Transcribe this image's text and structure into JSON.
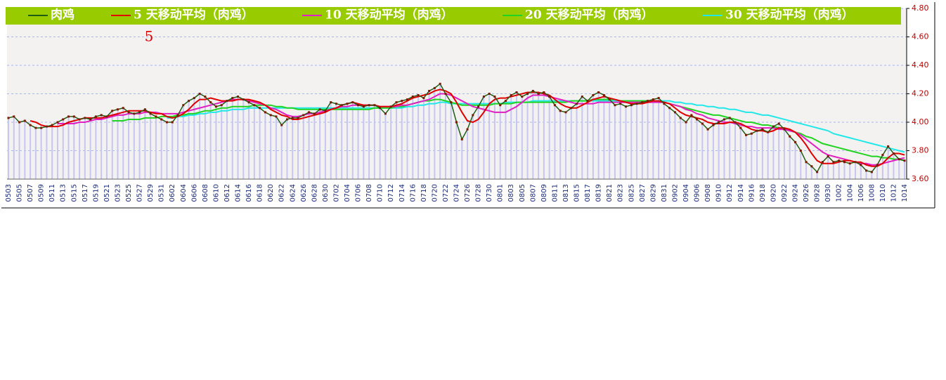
{
  "chart_data": {
    "type": "line",
    "annotation": "5",
    "categories": [
      "0503",
      null,
      "0505",
      null,
      "0507",
      null,
      "0509",
      null,
      "0511",
      null,
      "0513",
      null,
      "0515",
      null,
      "0517",
      null,
      "0519",
      null,
      "0521",
      null,
      "0523",
      null,
      "0525",
      null,
      "0527",
      null,
      "0529",
      null,
      "0531",
      null,
      "0602",
      null,
      "0604",
      null,
      "0606",
      null,
      "0608",
      null,
      "0610",
      null,
      "0612",
      null,
      "0614",
      null,
      "0616",
      null,
      "0618",
      null,
      "0620",
      null,
      "0622",
      null,
      "0624",
      null,
      "0626",
      null,
      "0628",
      null,
      "0630",
      null,
      "0702",
      null,
      "0704",
      null,
      "0706",
      null,
      "0708",
      null,
      "0710",
      null,
      "0712",
      null,
      "0714",
      null,
      "0716",
      null,
      "0718",
      null,
      "0720",
      null,
      "0722",
      null,
      "0724",
      null,
      "0726",
      null,
      "0728",
      null,
      "0730",
      null,
      "0801",
      null,
      "0803",
      null,
      "0805",
      null,
      "0807",
      null,
      "0809",
      null,
      "0811",
      null,
      "0813",
      null,
      "0815",
      null,
      "0817",
      null,
      "0819",
      null,
      "0821",
      null,
      "0823",
      null,
      "0825",
      null,
      "0827",
      null,
      "0829",
      null,
      "0831",
      null,
      "0902",
      null,
      "0904",
      null,
      "0906",
      null,
      "0908",
      null,
      "0910",
      null,
      "0912",
      null,
      "0914",
      null,
      "0916",
      null,
      "0918",
      null,
      "0920",
      null,
      "0922",
      null,
      "0924",
      null,
      "0926",
      null,
      "0928",
      null,
      "0930",
      null,
      "1002",
      null,
      "1004",
      null,
      "1006",
      null,
      "1008",
      null,
      "1010",
      null,
      "1012",
      null,
      "1014"
    ],
    "series": [
      {
        "name": "肉鸡",
        "color": "#1f5e14",
        "values": [
          4.03,
          4.04,
          4.0,
          4.01,
          3.98,
          3.96,
          3.96,
          3.97,
          3.98,
          4.0,
          4.02,
          4.04,
          4.04,
          4.02,
          4.03,
          4.02,
          4.04,
          4.05,
          4.04,
          4.08,
          4.09,
          4.1,
          4.07,
          4.06,
          4.07,
          4.09,
          4.06,
          4.04,
          4.02,
          4.0,
          4.0,
          4.05,
          4.12,
          4.15,
          4.17,
          4.2,
          4.18,
          4.14,
          4.11,
          4.12,
          4.15,
          4.17,
          4.18,
          4.16,
          4.14,
          4.12,
          4.1,
          4.07,
          4.05,
          4.04,
          3.98,
          4.02,
          4.03,
          4.03,
          4.05,
          4.07,
          4.06,
          4.09,
          4.08,
          4.14,
          4.13,
          4.12,
          4.13,
          4.14,
          4.12,
          4.11,
          4.12,
          4.12,
          4.1,
          4.06,
          4.11,
          4.14,
          4.15,
          4.16,
          4.18,
          4.19,
          4.17,
          4.22,
          4.24,
          4.27,
          4.2,
          4.14,
          4.0,
          3.88,
          3.95,
          4.05,
          4.11,
          4.18,
          4.2,
          4.18,
          4.12,
          4.15,
          4.19,
          4.21,
          4.18,
          4.2,
          4.22,
          4.2,
          4.21,
          4.18,
          4.12,
          4.08,
          4.07,
          4.1,
          4.13,
          4.18,
          4.15,
          4.19,
          4.21,
          4.19,
          4.16,
          4.12,
          4.13,
          4.11,
          4.12,
          4.13,
          4.14,
          4.15,
          4.16,
          4.17,
          4.13,
          4.1,
          4.07,
          4.03,
          4.0,
          4.05,
          4.02,
          3.99,
          3.95,
          3.98,
          4.0,
          4.02,
          4.03,
          4.0,
          3.96,
          3.91,
          3.92,
          3.94,
          3.95,
          3.93,
          3.97,
          3.99,
          3.95,
          3.9,
          3.86,
          3.8,
          3.72,
          3.69,
          3.65,
          3.72,
          3.76,
          3.72,
          3.73,
          3.72,
          3.71,
          3.72,
          3.7,
          3.66,
          3.65,
          3.7,
          3.77,
          3.83,
          3.78,
          3.74,
          3.73
        ]
      },
      {
        "name": "5 天移动平均（肉鸡）",
        "color": "#e00000",
        "values": [
          null,
          null,
          null,
          null,
          4.01,
          4.0,
          3.98,
          3.97,
          3.97,
          3.97,
          3.98,
          4.0,
          4.01,
          4.02,
          4.03,
          4.03,
          4.03,
          4.03,
          4.04,
          4.05,
          4.06,
          4.07,
          4.08,
          4.08,
          4.08,
          4.08,
          4.07,
          4.06,
          4.06,
          4.04,
          4.03,
          4.04,
          4.06,
          4.09,
          4.13,
          4.16,
          4.16,
          4.17,
          4.16,
          4.15,
          4.15,
          4.15,
          4.16,
          4.16,
          4.16,
          4.15,
          4.14,
          4.12,
          4.09,
          4.07,
          4.05,
          4.04,
          4.02,
          4.02,
          4.03,
          4.04,
          4.05,
          4.06,
          4.07,
          4.09,
          4.1,
          4.12,
          4.13,
          4.14,
          4.13,
          4.12,
          4.12,
          4.12,
          4.11,
          4.11,
          4.11,
          4.12,
          4.13,
          4.15,
          4.17,
          4.18,
          4.19,
          4.2,
          4.22,
          4.23,
          4.22,
          4.2,
          4.14,
          4.07,
          4.01,
          4.0,
          4.02,
          4.07,
          4.13,
          4.16,
          4.17,
          4.17,
          4.18,
          4.19,
          4.2,
          4.21,
          4.21,
          4.21,
          4.2,
          4.19,
          4.16,
          4.13,
          4.11,
          4.1,
          4.1,
          4.12,
          4.14,
          4.16,
          4.17,
          4.18,
          4.17,
          4.16,
          4.15,
          4.14,
          4.13,
          4.13,
          4.13,
          4.14,
          4.15,
          4.15,
          4.14,
          4.13,
          4.1,
          4.07,
          4.05,
          4.04,
          4.03,
          4.02,
          4.0,
          3.99,
          3.99,
          3.99,
          4.0,
          4.0,
          3.99,
          3.97,
          3.95,
          3.94,
          3.94,
          3.93,
          3.94,
          3.96,
          3.96,
          3.95,
          3.93,
          3.89,
          3.84,
          3.78,
          3.73,
          3.71,
          3.71,
          3.71,
          3.72,
          3.73,
          3.73,
          3.72,
          3.72,
          3.7,
          3.69,
          3.69,
          3.71,
          3.75,
          3.78,
          3.78,
          3.77
        ]
      },
      {
        "name": "10 天移动平均（肉鸡）",
        "color": "#e020c0",
        "values": [
          null,
          null,
          null,
          null,
          null,
          null,
          null,
          null,
          null,
          3.99,
          3.99,
          3.99,
          3.99,
          4.0,
          4.0,
          4.01,
          4.02,
          4.02,
          4.03,
          4.04,
          4.05,
          4.05,
          4.06,
          4.06,
          4.06,
          4.07,
          4.07,
          4.07,
          4.06,
          4.06,
          4.06,
          4.06,
          4.07,
          4.08,
          4.09,
          4.1,
          4.11,
          4.12,
          4.13,
          4.14,
          4.15,
          4.16,
          4.16,
          4.16,
          4.15,
          4.14,
          4.13,
          4.12,
          4.1,
          4.09,
          4.07,
          4.05,
          4.04,
          4.04,
          4.05,
          4.06,
          4.06,
          4.07,
          4.08,
          4.09,
          4.1,
          4.11,
          4.11,
          4.12,
          4.12,
          4.12,
          4.12,
          4.12,
          4.11,
          4.11,
          4.11,
          4.11,
          4.12,
          4.12,
          4.13,
          4.14,
          4.15,
          4.16,
          4.18,
          4.2,
          4.2,
          4.19,
          4.17,
          4.15,
          4.13,
          4.11,
          4.1,
          4.09,
          4.08,
          4.07,
          4.07,
          4.07,
          4.09,
          4.11,
          4.14,
          4.17,
          4.19,
          4.19,
          4.19,
          4.18,
          4.17,
          4.16,
          4.15,
          4.14,
          4.13,
          4.13,
          4.13,
          4.13,
          4.14,
          4.14,
          4.14,
          4.14,
          4.14,
          4.14,
          4.14,
          4.14,
          4.14,
          4.14,
          4.14,
          4.14,
          4.14,
          4.13,
          4.12,
          4.11,
          4.09,
          4.08,
          4.06,
          4.05,
          4.03,
          4.02,
          4.01,
          4.0,
          4.0,
          3.99,
          3.98,
          3.97,
          3.97,
          3.96,
          3.96,
          3.96,
          3.96,
          3.95,
          3.95,
          3.94,
          3.93,
          3.91,
          3.88,
          3.85,
          3.82,
          3.79,
          3.77,
          3.76,
          3.75,
          3.74,
          3.73,
          3.72,
          3.71,
          3.71,
          3.7,
          3.7,
          3.71,
          3.72,
          3.73,
          3.74,
          3.75
        ]
      },
      {
        "name": "20 天移动平均（肉鸡）",
        "color": "#22d422",
        "values": [
          null,
          null,
          null,
          null,
          null,
          null,
          null,
          null,
          null,
          null,
          null,
          null,
          null,
          null,
          null,
          null,
          null,
          null,
          null,
          4.01,
          4.01,
          4.01,
          4.02,
          4.02,
          4.02,
          4.03,
          4.03,
          4.03,
          4.04,
          4.04,
          4.04,
          4.05,
          4.05,
          4.06,
          4.06,
          4.07,
          4.08,
          4.08,
          4.09,
          4.1,
          4.1,
          4.11,
          4.11,
          4.11,
          4.11,
          4.12,
          4.12,
          4.12,
          4.12,
          4.11,
          4.11,
          4.1,
          4.1,
          4.09,
          4.09,
          4.09,
          4.09,
          4.09,
          4.09,
          4.09,
          4.09,
          4.09,
          4.09,
          4.09,
          4.09,
          4.09,
          4.09,
          4.1,
          4.1,
          4.1,
          4.1,
          4.11,
          4.11,
          4.12,
          4.13,
          4.14,
          4.15,
          4.15,
          4.16,
          4.16,
          4.15,
          4.14,
          4.13,
          4.12,
          4.12,
          4.12,
          4.12,
          4.12,
          4.12,
          4.13,
          4.13,
          4.13,
          4.13,
          4.14,
          4.14,
          4.14,
          4.14,
          4.14,
          4.14,
          4.14,
          4.14,
          4.14,
          4.14,
          4.15,
          4.15,
          4.15,
          4.15,
          4.16,
          4.16,
          4.16,
          4.16,
          4.16,
          4.15,
          4.15,
          4.15,
          4.15,
          4.15,
          4.15,
          4.15,
          4.14,
          4.14,
          4.13,
          4.12,
          4.11,
          4.1,
          4.09,
          4.08,
          4.07,
          4.06,
          4.05,
          4.05,
          4.04,
          4.03,
          4.02,
          4.01,
          4.0,
          4.0,
          3.99,
          3.98,
          3.98,
          3.97,
          3.96,
          3.95,
          3.94,
          3.93,
          3.92,
          3.9,
          3.89,
          3.87,
          3.85,
          3.84,
          3.83,
          3.82,
          3.81,
          3.8,
          3.79,
          3.78,
          3.77,
          3.76,
          3.76,
          3.75,
          3.75,
          3.74,
          3.74,
          3.73
        ]
      },
      {
        "name": "30 天移动平均（肉鸡）",
        "color": "#22e8e8",
        "values": [
          null,
          null,
          null,
          null,
          null,
          null,
          null,
          null,
          null,
          null,
          null,
          null,
          null,
          null,
          null,
          null,
          null,
          null,
          null,
          null,
          null,
          null,
          null,
          null,
          null,
          null,
          null,
          null,
          null,
          4.03,
          4.03,
          4.04,
          4.04,
          4.05,
          4.05,
          4.06,
          4.06,
          4.07,
          4.07,
          4.08,
          4.08,
          4.09,
          4.09,
          4.09,
          4.1,
          4.1,
          4.1,
          4.1,
          4.1,
          4.1,
          4.1,
          4.1,
          4.1,
          4.1,
          4.1,
          4.1,
          4.1,
          4.1,
          4.1,
          4.1,
          4.1,
          4.1,
          4.1,
          4.1,
          4.1,
          4.1,
          4.1,
          4.1,
          4.1,
          4.1,
          4.1,
          4.1,
          4.1,
          4.11,
          4.11,
          4.12,
          4.12,
          4.13,
          4.13,
          4.14,
          4.14,
          4.13,
          4.13,
          4.13,
          4.13,
          4.13,
          4.13,
          4.13,
          4.13,
          4.13,
          4.13,
          4.14,
          4.14,
          4.14,
          4.14,
          4.14,
          4.15,
          4.15,
          4.15,
          4.15,
          4.15,
          4.15,
          4.15,
          4.15,
          4.15,
          4.15,
          4.15,
          4.15,
          4.15,
          4.15,
          4.15,
          4.15,
          4.15,
          4.15,
          4.15,
          4.15,
          4.15,
          4.15,
          4.15,
          4.15,
          4.15,
          4.15,
          4.14,
          4.14,
          4.13,
          4.13,
          4.12,
          4.12,
          4.11,
          4.11,
          4.1,
          4.1,
          4.09,
          4.09,
          4.08,
          4.07,
          4.07,
          4.06,
          4.05,
          4.05,
          4.04,
          4.03,
          4.02,
          4.01,
          4.0,
          3.99,
          3.98,
          3.97,
          3.96,
          3.95,
          3.94,
          3.92,
          3.91,
          3.9,
          3.89,
          3.88,
          3.87,
          3.86,
          3.85,
          3.84,
          3.83,
          3.82,
          3.81,
          3.8,
          3.79
        ]
      }
    ],
    "bar_color": "#c6c6f2",
    "legend_color": "#99cc00",
    "ylim": [
      3.6,
      4.8
    ],
    "yticks": [
      {
        "value": 4.8,
        "label": "4.80"
      },
      {
        "value": 4.6,
        "label": "4.60"
      },
      {
        "value": 4.4,
        "label": "4.40"
      },
      {
        "value": 4.2,
        "label": "4.20"
      },
      {
        "value": 4.0,
        "label": "4.00"
      },
      {
        "value": 3.8,
        "label": "3.80"
      },
      {
        "value": 3.6,
        "label": "3.60"
      }
    ],
    "grid": true
  }
}
